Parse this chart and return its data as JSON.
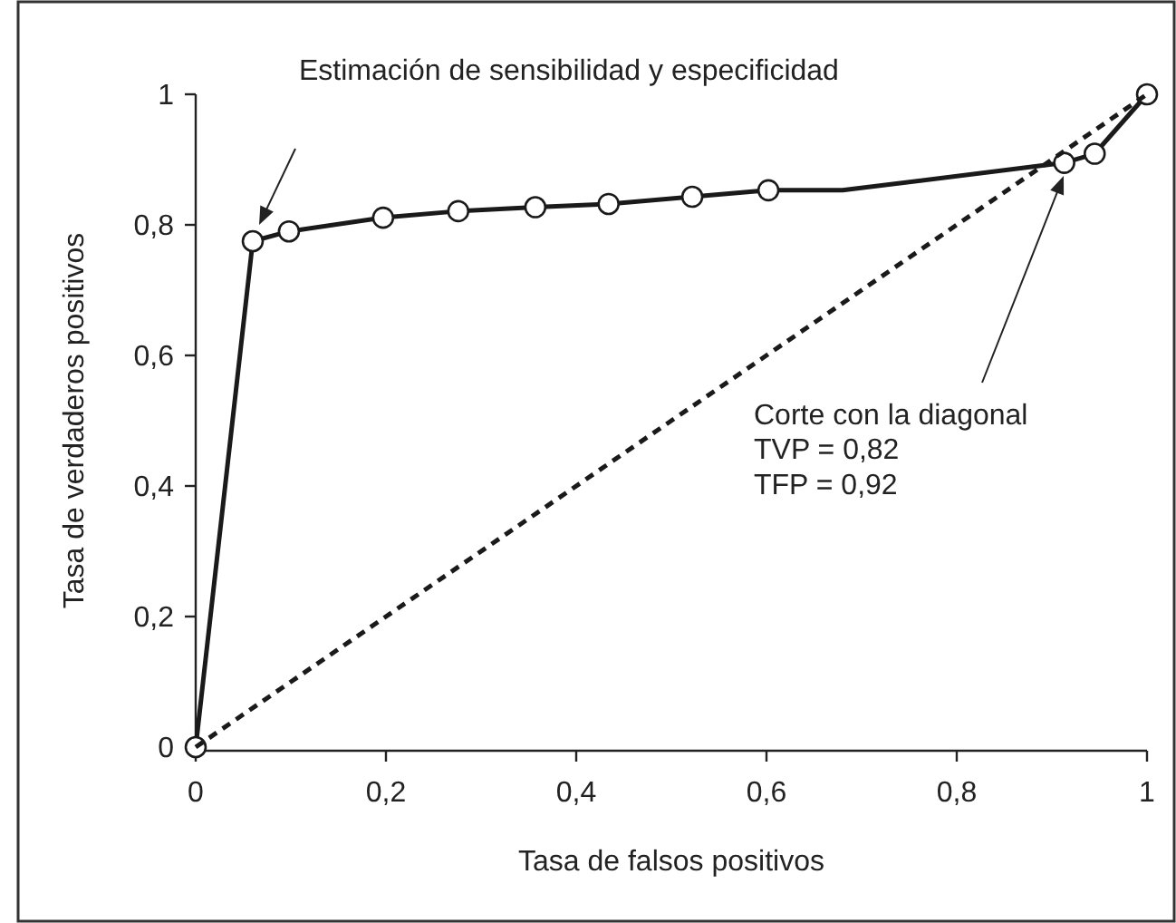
{
  "chart_data": {
    "type": "line",
    "xlabel": "Tasa de falsos positivos",
    "ylabel": "Tasa de verdaderos positivos",
    "xlim": [
      0,
      1
    ],
    "ylim": [
      0,
      1
    ],
    "xticks": [
      0,
      {
        "value": 0.2,
        "label": "0,2"
      },
      {
        "value": 0.4,
        "label": "0,4"
      },
      {
        "value": 0.6,
        "label": "0,6"
      },
      {
        "value": 0.8,
        "label": "0,8"
      },
      1
    ],
    "yticks": [
      0,
      {
        "value": 0.2,
        "label": "0,2"
      },
      {
        "value": 0.4,
        "label": "0,4"
      },
      {
        "value": 0.6,
        "label": "0,6"
      },
      {
        "value": 0.8,
        "label": "0,8"
      },
      1
    ],
    "grid": false,
    "series": [
      {
        "color": "#1a1a1a",
        "line_style": "solid",
        "marker": "none",
        "x": [
          0,
          0.06,
          0.098,
          0.197,
          0.276,
          0.357,
          0.434,
          0.522,
          0.602,
          0.68,
          0.913,
          0.945,
          1
        ],
        "values": [
          0,
          0.775,
          0.79,
          0.811,
          0.821,
          0.827,
          0.832,
          0.843,
          0.853,
          0.853,
          0.895,
          0.909,
          1
        ]
      },
      {
        "type": "scatter",
        "color": "#1a1a1a",
        "marker": "circle",
        "x": [
          0,
          0.06,
          0.098,
          0.197,
          0.276,
          0.357,
          0.434,
          0.522,
          0.602,
          0.913,
          0.945,
          1
        ],
        "values": [
          0,
          0.775,
          0.79,
          0.811,
          0.821,
          0.827,
          0.832,
          0.843,
          0.853,
          0.895,
          0.909,
          1
        ]
      },
      {
        "type": "line",
        "color": "#1a1a1a",
        "line_style": "dashed",
        "marker": "none",
        "x": [
          0,
          1
        ],
        "values": [
          0,
          1
        ]
      }
    ],
    "annotations": [
      "Estimación de sensibilidad y especificidad",
      "Corte con la diagonal\nTVP = 0,82\nTFP = 0,92"
    ]
  }
}
